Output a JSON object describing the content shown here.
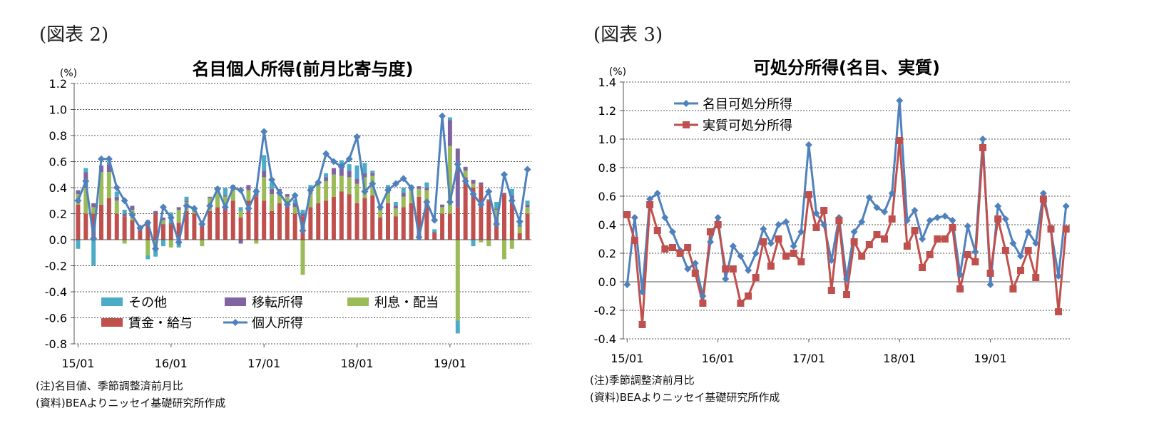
{
  "figures": [
    {
      "figure_label": "(図表 2)",
      "notes": [
        "(注)名目値、季節調整済前月比",
        "(資料)BEAよりニッセイ基礎研究所作成"
      ]
    },
    {
      "figure_label": "(図表 3)",
      "notes": [
        "(注)季節調整済前月比",
        "(資料)BEAよりニッセイ基礎研究所作成"
      ]
    }
  ],
  "colors": {
    "other": "#4bacc6",
    "transfer": "#8064a2",
    "interest": "#9bbb59",
    "wages": "#c0504d",
    "line_blue": "#4f81bd",
    "line_red": "#c0504d"
  },
  "chart_data": [
    {
      "type": "bar",
      "stacked": true,
      "title": "名目個人所得(前月比寄与度)",
      "unit_label": "(%)",
      "ylim": [
        -0.8,
        1.2
      ],
      "ytick_labels": [
        "-0.8",
        "-0.6",
        "-0.4",
        "-0.2",
        "0.0",
        "0.2",
        "0.4",
        "0.6",
        "0.8",
        "1.0",
        "1.2"
      ],
      "x_tick_labels": [
        "15/01",
        "16/01",
        "17/01",
        "18/01",
        "19/01"
      ],
      "x_tick_index": [
        0,
        12,
        24,
        36,
        48
      ],
      "grid": true,
      "legend_position": "bottom-left",
      "series": [
        {
          "name": "その他",
          "values": [
            -0.07,
            0.03,
            -0.2,
            0,
            0.02,
            0.04,
            0.03,
            0,
            0,
            -0.03,
            -0.08,
            -0.05,
            0.08,
            -0.06,
            0.03,
            0,
            0,
            0,
            0,
            0.06,
            0,
            0.03,
            0,
            0,
            0.12,
            0.05,
            0,
            0,
            0.03,
            0.03,
            0.06,
            0,
            0.03,
            0,
            0.06,
            0.05,
            0.1,
            0.08,
            0.02,
            0,
            0.03,
            0.03,
            0.04,
            0.02,
            0,
            0.04,
            0.02,
            0,
            0.02,
            -0.1,
            0,
            -0.05,
            0,
            0,
            0.05,
            0,
            0.05,
            0.04,
            0.03,
            -0.12,
            0.02
          ]
        },
        {
          "name": "移転所得",
          "values": [
            0.03,
            0.12,
            0.03,
            0.05,
            0.06,
            0.03,
            0.02,
            0.03,
            0.01,
            0.02,
            0.02,
            0.02,
            0.01,
            0.02,
            0.01,
            0.01,
            0.01,
            0.01,
            0.02,
            0.01,
            0.02,
            -0.03,
            0.04,
            0.06,
            0.05,
            0.04,
            0.03,
            0.02,
            0.03,
            0.02,
            0.01,
            0.02,
            0.03,
            0.05,
            0.06,
            0.05,
            0.04,
            0.03,
            0.02,
            0.02,
            0.03,
            0.02,
            0.03,
            0.02,
            0.02,
            0.02,
            0.01,
            0.02,
            0.2,
            0.45,
            0.03,
            0.03,
            0.02,
            0.01,
            0.01,
            0.01,
            0.02,
            0.01,
            0.02,
            0.02,
            0.01
          ]
        },
        {
          "name": "利息・配当",
          "values": [
            0.08,
            0.2,
            0.05,
            0.25,
            0.2,
            0.1,
            -0.03,
            0.08,
            0,
            -0.12,
            -0.05,
            0.03,
            -0.06,
            0.1,
            0.07,
            0.02,
            -0.05,
            0.1,
            0.12,
            0.08,
            0.1,
            0.05,
            0.08,
            -0.03,
            0.18,
            0.13,
            0.08,
            0.05,
            0.05,
            -0.27,
            0.1,
            0.15,
            0.15,
            0.17,
            0.12,
            0.13,
            0.15,
            0.16,
            0.15,
            0.06,
            0.08,
            0.06,
            0.08,
            0.1,
            0.06,
            0.08,
            0,
            0.05,
            0.52,
            -0.62,
            0.05,
            0.03,
            -0.02,
            -0.05,
            0.08,
            -0.15,
            -0.07,
            0.05,
            0.05,
            0.05,
            0.12
          ]
        },
        {
          "name": "賃金・給与",
          "values": [
            0.27,
            0.2,
            0.2,
            0.27,
            0.32,
            0.2,
            0.18,
            0.15,
            0.08,
            0.13,
            0.2,
            0.12,
            0.12,
            0.13,
            0.22,
            0.2,
            0.12,
            0.22,
            0.25,
            0.25,
            0.3,
            0.17,
            0.3,
            0.33,
            0.3,
            0.22,
            0.28,
            0.28,
            0.2,
            0.18,
            0.25,
            0.28,
            0.3,
            0.33,
            0.37,
            0.35,
            0.28,
            0.32,
            0.34,
            0.17,
            0.28,
            0.18,
            0.25,
            0.28,
            0.33,
            0.3,
            0.05,
            0.2,
            0.2,
            0.25,
            0.48,
            0.4,
            0.42,
            0.3,
            0.15,
            0.35,
            0.32,
            0.05,
            0.2,
            0.18,
            0.22
          ]
        },
        {
          "name": "個人所得",
          "type": "line",
          "values": [
            0.3,
            0.45,
            0.01,
            0.62,
            0.62,
            0.4,
            0.3,
            0.19,
            0.09,
            0.13,
            -0.07,
            0.25,
            0.17,
            -0.02,
            0.26,
            0.24,
            0.12,
            0.26,
            0.39,
            0.25,
            0.4,
            0.38,
            0.24,
            0.37,
            0.83,
            0.46,
            0.36,
            0.27,
            0.34,
            0.07,
            0.38,
            0.44,
            0.66,
            0.6,
            0.56,
            0.62,
            0.79,
            0.37,
            0.43,
            0.25,
            0.38,
            0.43,
            0.47,
            0.4,
            0.02,
            0.29,
            0.15,
            0.95,
            0.29,
            0.58,
            0.45,
            0.35,
            0.27,
            0.37,
            0.12,
            0.5,
            0.3,
            0.14,
            0.54
          ]
        }
      ]
    },
    {
      "type": "line",
      "title": "可処分所得(名目、実質)",
      "unit_label": "(%)",
      "ylim": [
        -0.4,
        1.4
      ],
      "ytick_labels": [
        "-0.4",
        "-0.2",
        "0.0",
        "0.2",
        "0.4",
        "0.6",
        "0.8",
        "1.0",
        "1.2",
        "1.4"
      ],
      "x_tick_labels": [
        "15/01",
        "16/01",
        "17/01",
        "18/01",
        "19/01"
      ],
      "x_tick_index": [
        0,
        12,
        24,
        36,
        48
      ],
      "grid": true,
      "legend_position": "top-left",
      "series": [
        {
          "name": "名目可処分所得",
          "values": [
            -0.02,
            0.45,
            -0.07,
            0.58,
            0.62,
            0.45,
            0.35,
            0.22,
            0.09,
            0.13,
            -0.1,
            0.28,
            0.45,
            0.02,
            0.25,
            0.18,
            0.08,
            0.2,
            0.37,
            0.27,
            0.4,
            0.42,
            0.25,
            0.35,
            0.96,
            0.48,
            0.4,
            0.15,
            0.45,
            0.02,
            0.35,
            0.42,
            0.59,
            0.52,
            0.49,
            0.62,
            1.27,
            0.43,
            0.5,
            0.3,
            0.43,
            0.45,
            0.46,
            0.43,
            0.05,
            0.39,
            0.21,
            1.0,
            -0.02,
            0.53,
            0.44,
            0.27,
            0.18,
            0.35,
            0.27,
            0.62,
            0.36,
            0.04,
            0.53
          ]
        },
        {
          "name": "実質可処分所得",
          "values": [
            0.47,
            0.29,
            -0.3,
            0.54,
            0.36,
            0.23,
            0.24,
            0.2,
            0.24,
            0.06,
            -0.15,
            0.35,
            0.4,
            0.09,
            0.09,
            -0.15,
            -0.1,
            0.03,
            0.28,
            0.11,
            0.3,
            0.18,
            0.2,
            0.14,
            0.61,
            0.38,
            0.5,
            -0.06,
            0.43,
            -0.09,
            0.28,
            0.18,
            0.26,
            0.33,
            0.3,
            0.44,
            0.99,
            0.25,
            0.36,
            0.1,
            0.19,
            0.3,
            0.3,
            0.38,
            -0.05,
            0.19,
            0.14,
            0.94,
            0.06,
            0.44,
            0.22,
            -0.05,
            0.08,
            0.22,
            0.03,
            0.58,
            0.37,
            -0.21,
            0.37
          ]
        }
      ]
    }
  ]
}
